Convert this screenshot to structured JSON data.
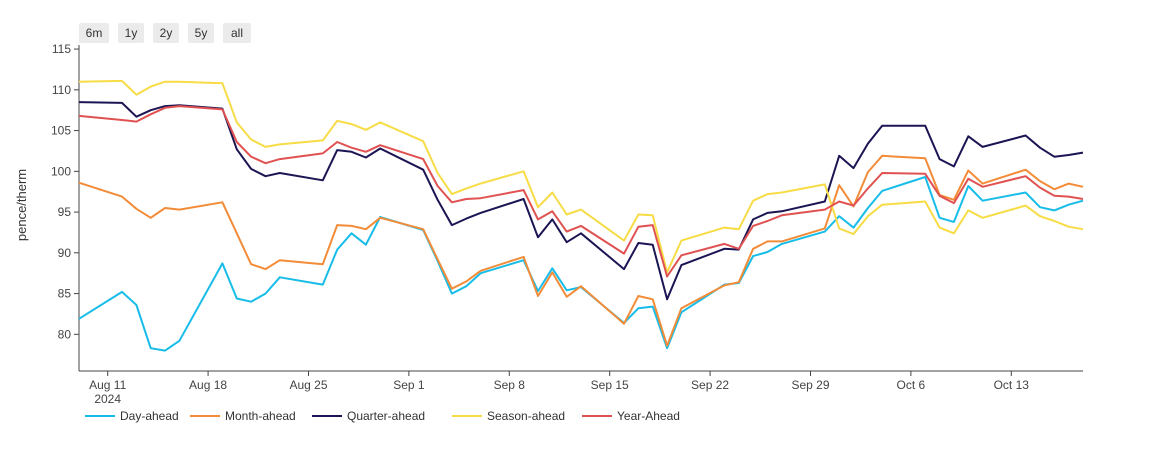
{
  "range_buttons": [
    "6m",
    "1y",
    "2y",
    "5y",
    "all"
  ],
  "chart_data": {
    "type": "line",
    "title": "",
    "xlabel": "",
    "ylabel": "pence/therm",
    "ylim": [
      75.5,
      115.5
    ],
    "xlim": [
      "2024-08-09",
      "2024-10-18"
    ],
    "x_ticks": [
      {
        "date": "2024-08-11",
        "label": "Aug 11",
        "sublabel": "2024"
      },
      {
        "date": "2024-08-18",
        "label": "Aug 18"
      },
      {
        "date": "2024-08-25",
        "label": "Aug 25"
      },
      {
        "date": "2024-09-01",
        "label": "Sep 1"
      },
      {
        "date": "2024-09-08",
        "label": "Sep 8"
      },
      {
        "date": "2024-09-15",
        "label": "Sep 15"
      },
      {
        "date": "2024-09-22",
        "label": "Sep 22"
      },
      {
        "date": "2024-09-29",
        "label": "Sep 29"
      },
      {
        "date": "2024-10-06",
        "label": "Oct 6"
      },
      {
        "date": "2024-10-13",
        "label": "Oct 13"
      }
    ],
    "y_ticks": [
      80,
      85,
      90,
      95,
      100,
      105,
      110,
      115
    ],
    "grid": false,
    "legend_position": "bottom-left",
    "x": [
      "2024-08-09",
      "2024-08-12",
      "2024-08-13",
      "2024-08-14",
      "2024-08-15",
      "2024-08-16",
      "2024-08-19",
      "2024-08-20",
      "2024-08-21",
      "2024-08-22",
      "2024-08-23",
      "2024-08-26",
      "2024-08-27",
      "2024-08-28",
      "2024-08-29",
      "2024-08-30",
      "2024-09-02",
      "2024-09-03",
      "2024-09-04",
      "2024-09-05",
      "2024-09-06",
      "2024-09-09",
      "2024-09-10",
      "2024-09-11",
      "2024-09-12",
      "2024-09-13",
      "2024-09-16",
      "2024-09-17",
      "2024-09-18",
      "2024-09-19",
      "2024-09-20",
      "2024-09-23",
      "2024-09-24",
      "2024-09-25",
      "2024-09-26",
      "2024-09-27",
      "2024-09-30",
      "2024-10-01",
      "2024-10-02",
      "2024-10-03",
      "2024-10-04",
      "2024-10-07",
      "2024-10-08",
      "2024-10-09",
      "2024-10-10",
      "2024-10-11",
      "2024-10-14",
      "2024-10-15",
      "2024-10-16",
      "2024-10-17",
      "2024-10-18"
    ],
    "series": [
      {
        "name": "Day-ahead",
        "color": "#17bde8",
        "values": [
          81.9,
          85.2,
          83.6,
          78.3,
          78.0,
          79.2,
          88.7,
          84.4,
          84.0,
          85.0,
          87.0,
          86.1,
          90.4,
          92.4,
          91.0,
          94.4,
          92.8,
          89.0,
          85.0,
          85.9,
          87.5,
          89.1,
          85.3,
          88.1,
          85.4,
          85.8,
          81.4,
          83.2,
          83.4,
          78.3,
          82.7,
          86.1,
          86.3,
          89.6,
          90.1,
          91.1,
          92.6,
          94.5,
          93.1,
          95.5,
          97.6,
          99.3,
          94.3,
          93.8,
          98.2,
          96.4,
          97.4,
          95.6,
          95.2,
          95.9,
          96.4
        ]
      },
      {
        "name": "Month-ahead",
        "color": "#f28c38",
        "values": [
          98.6,
          96.9,
          95.4,
          94.3,
          95.5,
          95.3,
          96.2,
          92.4,
          88.6,
          88.0,
          89.1,
          88.6,
          93.4,
          93.3,
          92.9,
          94.3,
          92.9,
          89.2,
          85.6,
          86.5,
          87.8,
          89.5,
          84.7,
          87.6,
          84.6,
          85.9,
          81.3,
          84.7,
          84.3,
          78.6,
          83.2,
          86.0,
          86.4,
          90.5,
          91.4,
          91.4,
          93.0,
          98.3,
          95.7,
          99.9,
          101.9,
          101.6,
          97.1,
          96.5,
          100.1,
          98.5,
          100.2,
          98.8,
          97.8,
          98.5,
          98.1
        ]
      },
      {
        "name": "Quarter-ahead",
        "color": "#1b1554",
        "values": [
          108.5,
          108.4,
          106.7,
          107.5,
          108.0,
          108.1,
          107.7,
          102.7,
          100.3,
          99.4,
          99.8,
          98.9,
          102.6,
          102.4,
          101.7,
          102.8,
          100.2,
          96.5,
          93.4,
          94.2,
          94.9,
          96.6,
          91.9,
          94.1,
          91.3,
          92.4,
          88.0,
          91.2,
          91.0,
          84.3,
          88.5,
          90.5,
          90.4,
          94.1,
          94.9,
          95.1,
          96.3,
          101.9,
          100.4,
          103.4,
          105.6,
          105.6,
          101.5,
          100.6,
          104.3,
          103.0,
          104.4,
          102.9,
          101.8,
          102.0,
          102.3
        ]
      },
      {
        "name": "Season-ahead",
        "color": "#f7dc45",
        "values": [
          111.0,
          111.1,
          109.4,
          110.4,
          111.0,
          111.0,
          110.8,
          106.0,
          103.9,
          103.0,
          103.3,
          103.8,
          106.2,
          105.8,
          105.1,
          106.0,
          103.7,
          99.8,
          97.2,
          97.9,
          98.5,
          100.0,
          95.6,
          97.4,
          94.7,
          95.3,
          91.5,
          94.7,
          94.6,
          87.6,
          91.5,
          93.1,
          92.9,
          96.4,
          97.2,
          97.4,
          98.4,
          93.0,
          92.3,
          94.5,
          95.9,
          96.3,
          93.1,
          92.4,
          95.2,
          94.3,
          95.8,
          94.5,
          93.9,
          93.2,
          92.9
        ]
      },
      {
        "name": "Year-Ahead",
        "color": "#e05252",
        "values": [
          106.8,
          106.3,
          106.1,
          107.0,
          107.8,
          108.0,
          107.6,
          103.6,
          101.8,
          101.0,
          101.5,
          102.2,
          103.6,
          102.9,
          102.4,
          103.2,
          101.5,
          98.2,
          96.2,
          96.6,
          96.7,
          97.7,
          94.1,
          95.1,
          92.6,
          93.3,
          89.9,
          93.2,
          93.4,
          87.1,
          89.7,
          91.1,
          90.5,
          93.3,
          93.9,
          94.6,
          95.3,
          96.3,
          95.8,
          97.9,
          99.8,
          99.7,
          97.0,
          96.1,
          99.1,
          98.1,
          99.4,
          98.0,
          97.0,
          96.9,
          96.6
        ]
      }
    ]
  }
}
